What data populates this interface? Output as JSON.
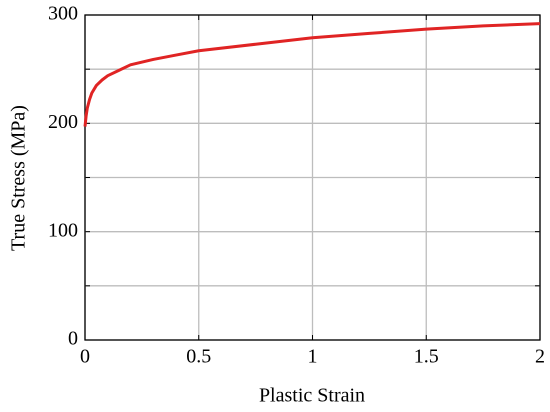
{
  "chart_data": {
    "type": "line",
    "xlabel": "Plastic Strain",
    "ylabel": "True Stress (MPa)",
    "x": [
      0,
      0.005,
      0.01,
      0.02,
      0.03,
      0.05,
      0.075,
      0.1,
      0.15,
      0.2,
      0.3,
      0.4,
      0.5,
      0.75,
      1,
      1.25,
      1.5,
      1.75,
      2
    ],
    "values": [
      197,
      207,
      214,
      222,
      228,
      235,
      240,
      244,
      249,
      254,
      259,
      263,
      267,
      273,
      279,
      283,
      287,
      290,
      292
    ],
    "color": "#e02424",
    "xlim": [
      0,
      2
    ],
    "xticks": [
      0,
      0.5,
      1,
      1.5,
      2
    ],
    "ylim": [
      0,
      300
    ],
    "yticks": [
      0,
      100,
      200,
      300
    ],
    "y_minor_ticks": [
      50,
      150,
      250
    ],
    "grid": true
  }
}
